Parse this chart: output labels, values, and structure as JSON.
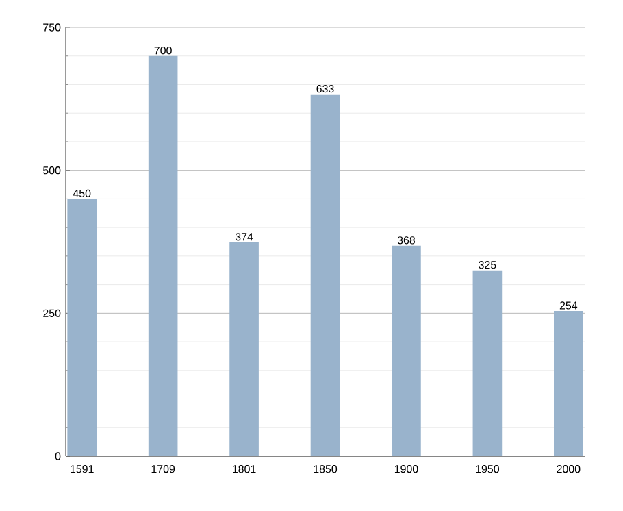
{
  "chart_data": {
    "type": "bar",
    "categories": [
      "1591",
      "1709",
      "1801",
      "1850",
      "1900",
      "1950",
      "2000"
    ],
    "values": [
      450,
      700,
      374,
      633,
      368,
      325,
      254
    ],
    "color": "#99b3cc",
    "ylim": [
      0,
      750
    ],
    "yticks": [
      0,
      250,
      500,
      750
    ],
    "grid": "y",
    "data_labels": true
  }
}
